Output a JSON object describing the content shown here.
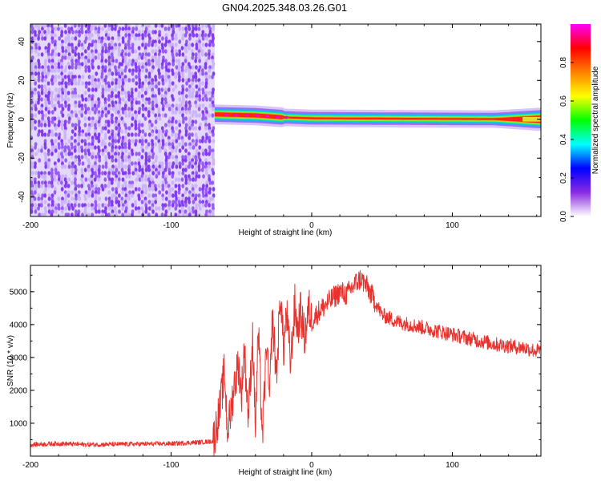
{
  "title": "GN04.2025.348.03.26.G01",
  "colors": {
    "snr_line": "#e8322e",
    "background": "#ffffff",
    "axis": "#000000",
    "spectro_base": "#7a2cf0",
    "spectro_light": "#c9b2f5"
  },
  "chart_data": [
    {
      "id": "spectrogram",
      "type": "heatmap",
      "xlabel": "Height of straight line (km)",
      "ylabel": "Frequency (Hz)",
      "xlim": [
        -200,
        163
      ],
      "ylim": [
        -50,
        49
      ],
      "xticks": [
        -200,
        -100,
        0,
        100
      ],
      "yticks": [
        -40,
        -20,
        0,
        20,
        40
      ],
      "grid": false,
      "noise_region": {
        "x": [
          -200,
          -69
        ],
        "frequency": [
          -50,
          49
        ]
      },
      "signal_band": {
        "x_start": -69,
        "x_end": 163,
        "frequency": [
          {
            "x": -69,
            "hz": 2.5
          },
          {
            "x": -40,
            "hz": 2.0
          },
          {
            "x": -20,
            "hz": 1.0
          },
          {
            "x": 0,
            "hz": 0.5
          },
          {
            "x": 163,
            "hz": 0.0
          }
        ],
        "peak_amplitude": 1.0
      },
      "colorbar": {
        "label": "Normalized spectral amplitude",
        "range": [
          0,
          1
        ],
        "ticks": [
          "0.0",
          "0.2",
          "0.4",
          "0.6",
          "0.8"
        ],
        "colorscale": [
          "#ffffff",
          "#8a2be2",
          "#0000ff",
          "#00ffff",
          "#00ff00",
          "#ffff00",
          "#ff8000",
          "#ff0000",
          "#ff00ff"
        ]
      }
    },
    {
      "id": "snr",
      "type": "line",
      "xlabel": "Height of straight line (km)",
      "ylabel": "SNR (10 * v/v)",
      "xlim": [
        -200,
        163
      ],
      "ylim": [
        0,
        5800
      ],
      "xticks": [
        -200,
        -100,
        0,
        100
      ],
      "yticks": [
        1000,
        2000,
        3000,
        4000,
        5000
      ],
      "grid": false,
      "series": [
        {
          "color": "#e8322e",
          "x": [
            -200,
            -180,
            -160,
            -140,
            -120,
            -100,
            -80,
            -70,
            -65,
            -62,
            -60,
            -58,
            -55,
            -52,
            -50,
            -48,
            -45,
            -42,
            -40,
            -38,
            -35,
            -32,
            -30,
            -28,
            -25,
            -22,
            -20,
            -18,
            -15,
            -12,
            -10,
            -8,
            -5,
            -2,
            0,
            5,
            10,
            15,
            20,
            25,
            30,
            35,
            40,
            45,
            50,
            55,
            60,
            70,
            80,
            90,
            100,
            110,
            120,
            130,
            140,
            150,
            160,
            163
          ],
          "y": [
            350,
            380,
            350,
            360,
            370,
            380,
            420,
            450,
            1500,
            2600,
            800,
            1200,
            2200,
            2800,
            1800,
            3300,
            1200,
            3600,
            900,
            3800,
            600,
            3500,
            1600,
            4200,
            2500,
            5000,
            3200,
            4400,
            2800,
            4600,
            3800,
            4400,
            3600,
            4500,
            4100,
            4400,
            4600,
            4800,
            5000,
            4900,
            5200,
            5400,
            5100,
            4700,
            4300,
            4200,
            4100,
            4000,
            3900,
            3800,
            3700,
            3600,
            3500,
            3400,
            3350,
            3300,
            3200,
            3200
          ]
        }
      ]
    }
  ]
}
